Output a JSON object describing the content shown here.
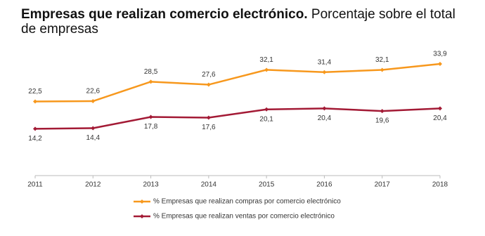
{
  "chart_data": {
    "type": "line",
    "title": "Empresas que realizan comercio electrónico.",
    "subtitle": "Porcentaje sobre el total de empresas",
    "categories": [
      "2011",
      "2012",
      "2013",
      "2014",
      "2015",
      "2016",
      "2017",
      "2018"
    ],
    "series": [
      {
        "name": "% Empresas que realizan compras por comercio electrónico",
        "color": "#f7981d",
        "values": [
          22.5,
          22.6,
          28.5,
          27.6,
          32.1,
          31.4,
          32.1,
          33.9
        ],
        "value_labels": [
          "22,5",
          "22,6",
          "28,5",
          "27,6",
          "32,1",
          "31,4",
          "32,1",
          "33,9"
        ]
      },
      {
        "name": "% Empresas que realizan ventas por comercio electrónico",
        "color": "#a31a35",
        "values": [
          14.2,
          14.4,
          17.8,
          17.6,
          20.1,
          20.4,
          19.6,
          20.4
        ],
        "value_labels": [
          "14,2",
          "14,4",
          "17,8",
          "17,6",
          "20,1",
          "20,4",
          "19,6",
          "20,4"
        ]
      }
    ]
  }
}
